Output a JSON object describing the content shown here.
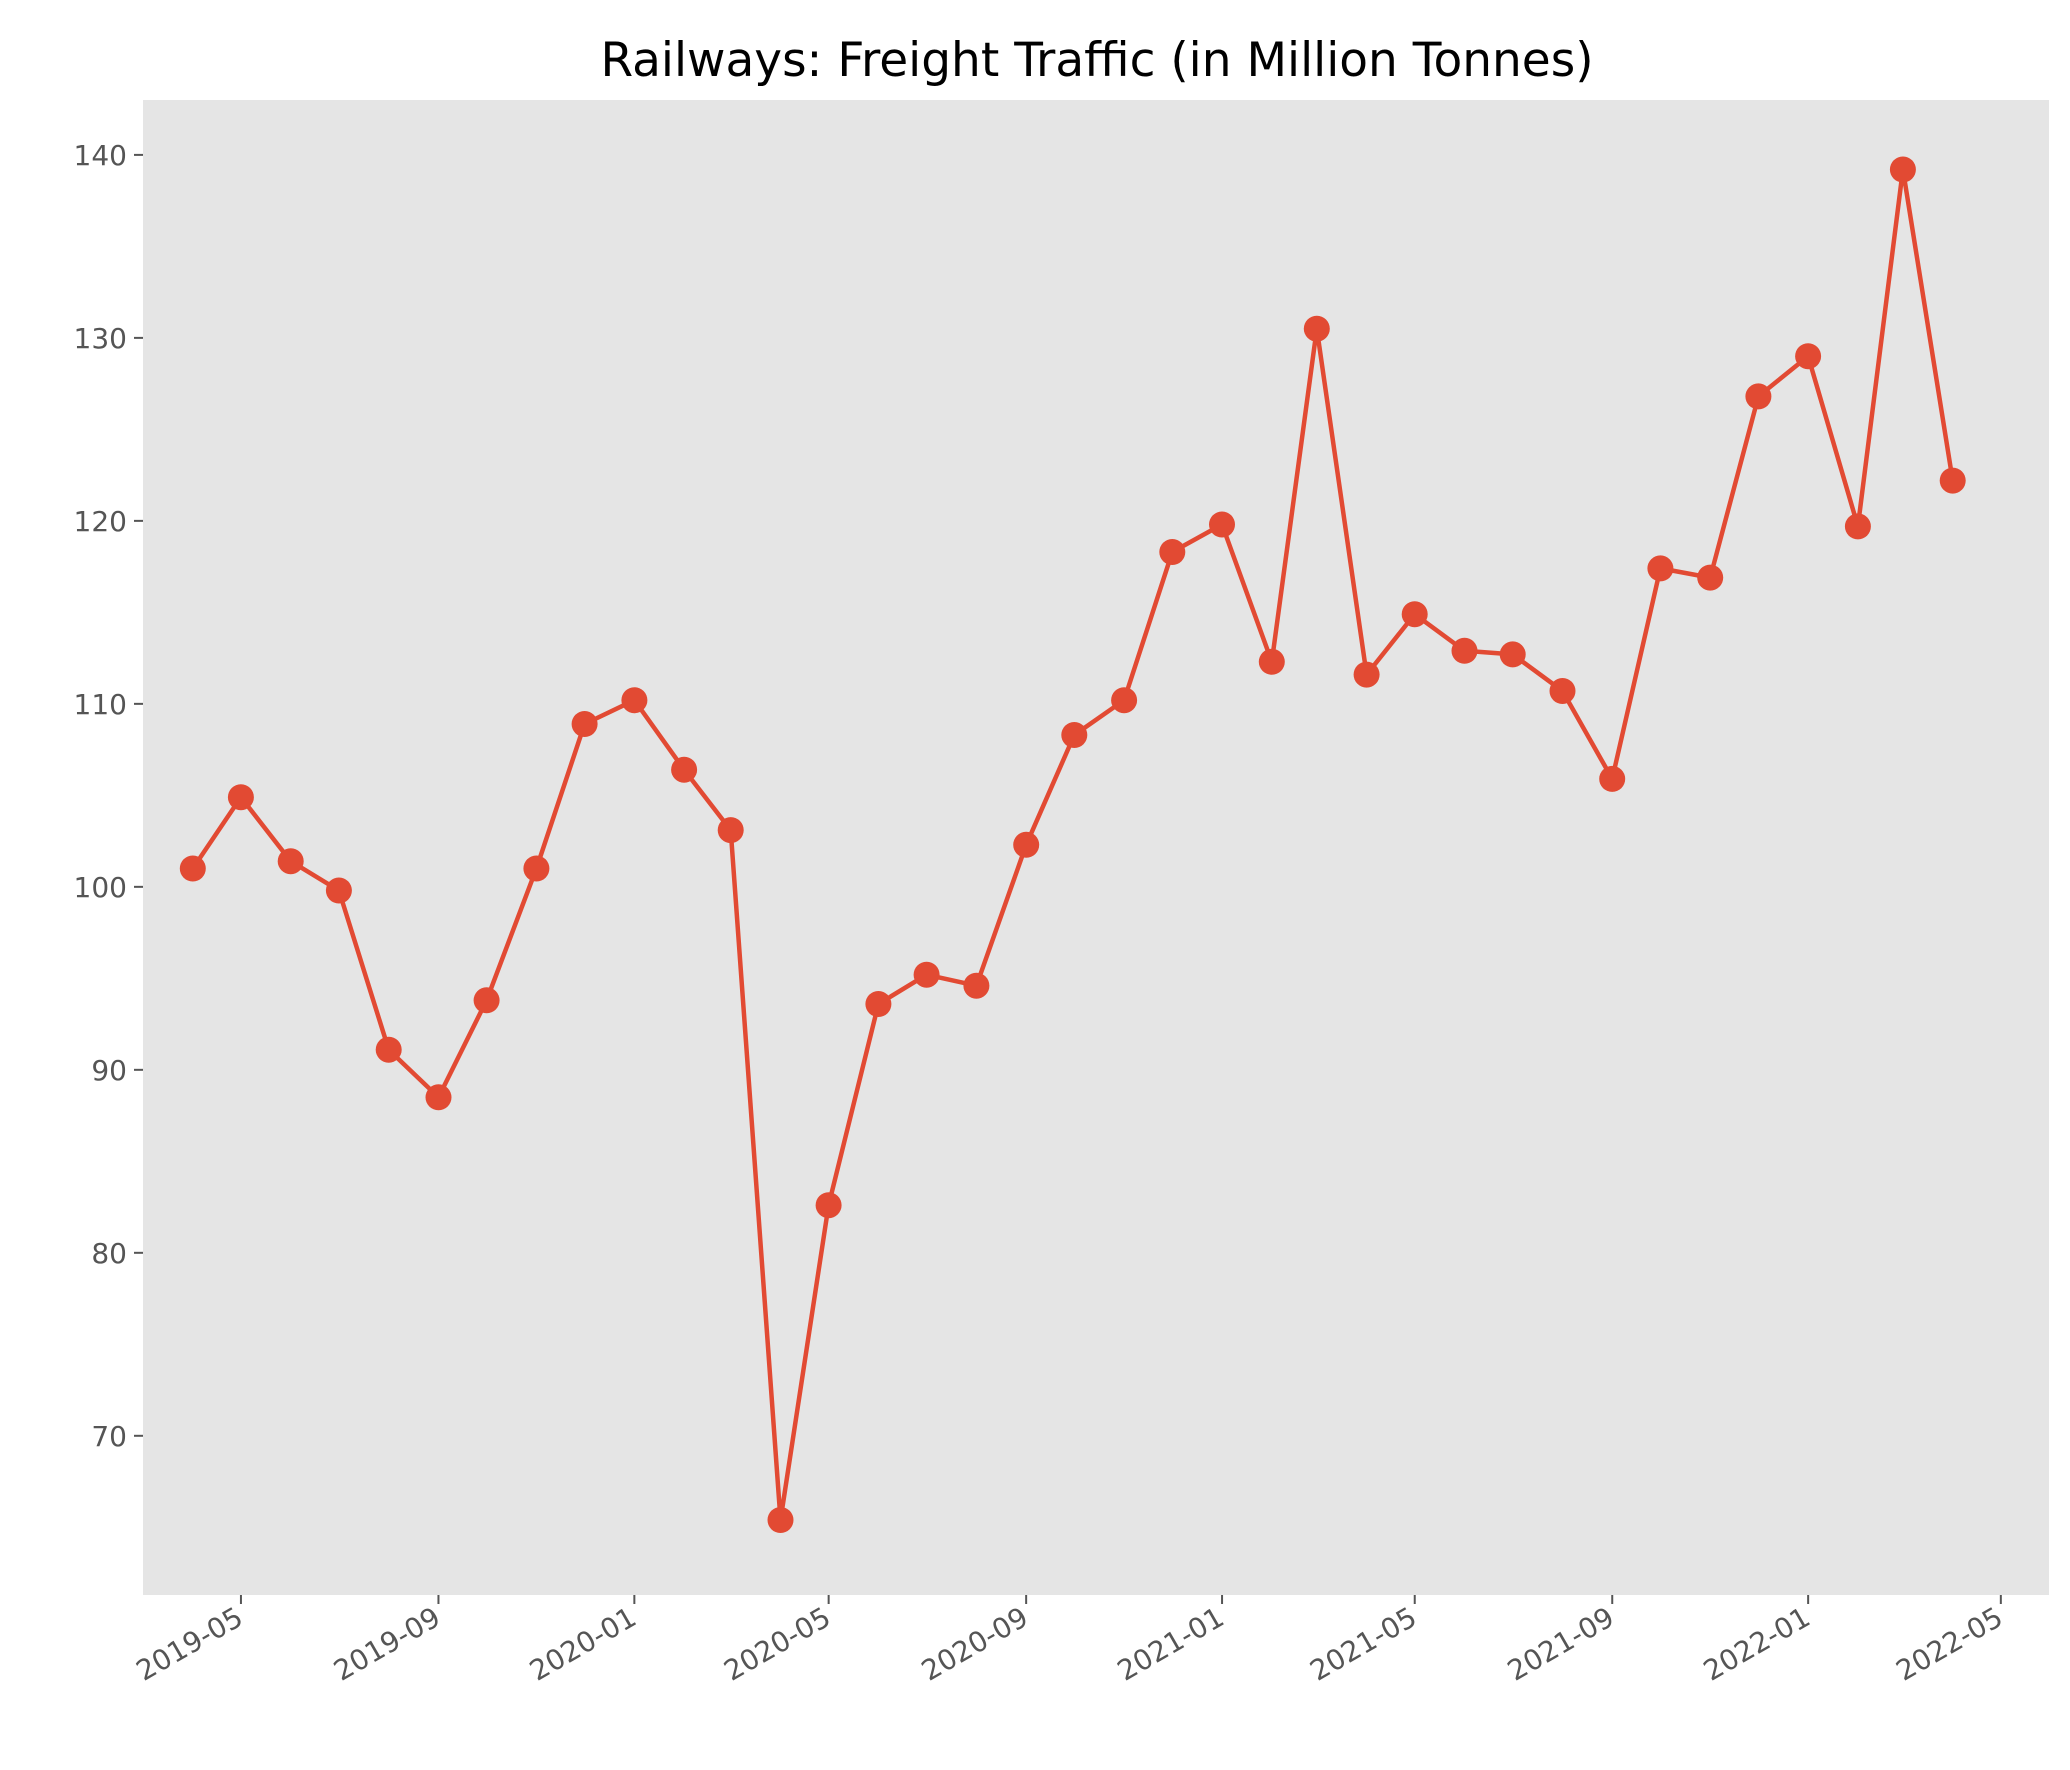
{
  "chart_data": {
    "type": "line",
    "title": "Railways: Freight Traffic (in Million Tonnes)",
    "xlabel": "",
    "ylabel": "",
    "x": [
      "2019-04",
      "2019-05",
      "2019-06",
      "2019-07",
      "2019-08",
      "2019-09",
      "2019-10",
      "2019-11",
      "2019-12",
      "2020-01",
      "2020-02",
      "2020-03",
      "2020-04",
      "2020-05",
      "2020-06",
      "2020-07",
      "2020-08",
      "2020-09",
      "2020-10",
      "2020-11",
      "2020-12",
      "2021-01",
      "2021-02",
      "2021-03",
      "2021-04",
      "2021-05",
      "2021-06",
      "2021-07",
      "2021-08",
      "2021-09",
      "2021-10",
      "2021-11",
      "2021-12",
      "2022-01",
      "2022-02",
      "2022-03",
      "2022-04"
    ],
    "series": [
      {
        "name": "",
        "values": [
          101.0,
          104.9,
          101.4,
          99.8,
          91.1,
          88.5,
          93.8,
          101.0,
          108.9,
          110.2,
          106.4,
          103.1,
          65.4,
          82.6,
          93.6,
          95.2,
          94.6,
          102.3,
          108.3,
          110.2,
          118.3,
          119.8,
          112.3,
          130.5,
          111.6,
          114.9,
          112.9,
          112.7,
          110.7,
          105.9,
          117.4,
          116.9,
          126.8,
          129.0,
          119.7,
          139.2,
          122.2
        ],
        "color": "#e24a33"
      }
    ],
    "x_ticks": [
      "2019-05",
      "2019-09",
      "2020-01",
      "2020-05",
      "2020-09",
      "2021-01",
      "2021-05",
      "2021-09",
      "2022-01",
      "2022-05"
    ],
    "y_ticks": [
      70,
      80,
      90,
      100,
      110,
      120,
      130,
      140
    ],
    "xlim": [
      "2019-03-01",
      "2022-05-31"
    ],
    "ylim": [
      61.3,
      143.0
    ],
    "grid": false,
    "background": "#e5e5e5"
  }
}
